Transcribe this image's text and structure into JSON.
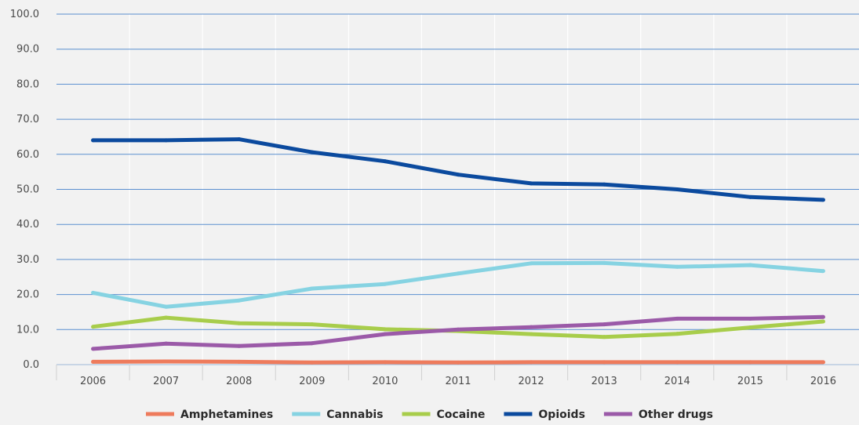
{
  "chart_data": {
    "type": "line",
    "title": "",
    "xlabel": "",
    "ylabel": "",
    "ylim": [
      0,
      100
    ],
    "yticks": [
      "0.0",
      "10.0",
      "20.0",
      "30.0",
      "40.0",
      "50.0",
      "60.0",
      "70.0",
      "80.0",
      "90.0",
      "100.0"
    ],
    "categories": [
      "2006",
      "2007",
      "2008",
      "2009",
      "2010",
      "2011",
      "2012",
      "2013",
      "2014",
      "2015",
      "2016"
    ],
    "grid": true,
    "legend_position": "bottom",
    "series": [
      {
        "name": "Amphetamines",
        "color": "#ee7b5c",
        "values": [
          0.8,
          0.9,
          0.8,
          0.6,
          0.7,
          0.6,
          0.7,
          0.7,
          0.7,
          0.7,
          0.7
        ]
      },
      {
        "name": "Cannabis",
        "color": "#86d3e2",
        "values": [
          20.5,
          16.5,
          18.3,
          21.7,
          23.0,
          26.0,
          28.9,
          29.0,
          27.9,
          28.4,
          26.7
        ]
      },
      {
        "name": "Cocaine",
        "color": "#a8cd4b",
        "values": [
          10.8,
          13.4,
          11.8,
          11.5,
          10.1,
          9.6,
          8.7,
          7.9,
          8.8,
          10.6,
          12.3
        ]
      },
      {
        "name": "Opioids",
        "color": "#0b4a9e",
        "values": [
          64.0,
          64.0,
          64.3,
          60.6,
          58.0,
          54.2,
          51.7,
          51.4,
          50.0,
          47.8,
          47.0
        ]
      },
      {
        "name": "Other drugs",
        "color": "#9b5aa8",
        "values": [
          4.5,
          6.0,
          5.3,
          6.1,
          8.7,
          10.0,
          10.7,
          11.5,
          13.1,
          13.1,
          13.6
        ]
      }
    ]
  }
}
